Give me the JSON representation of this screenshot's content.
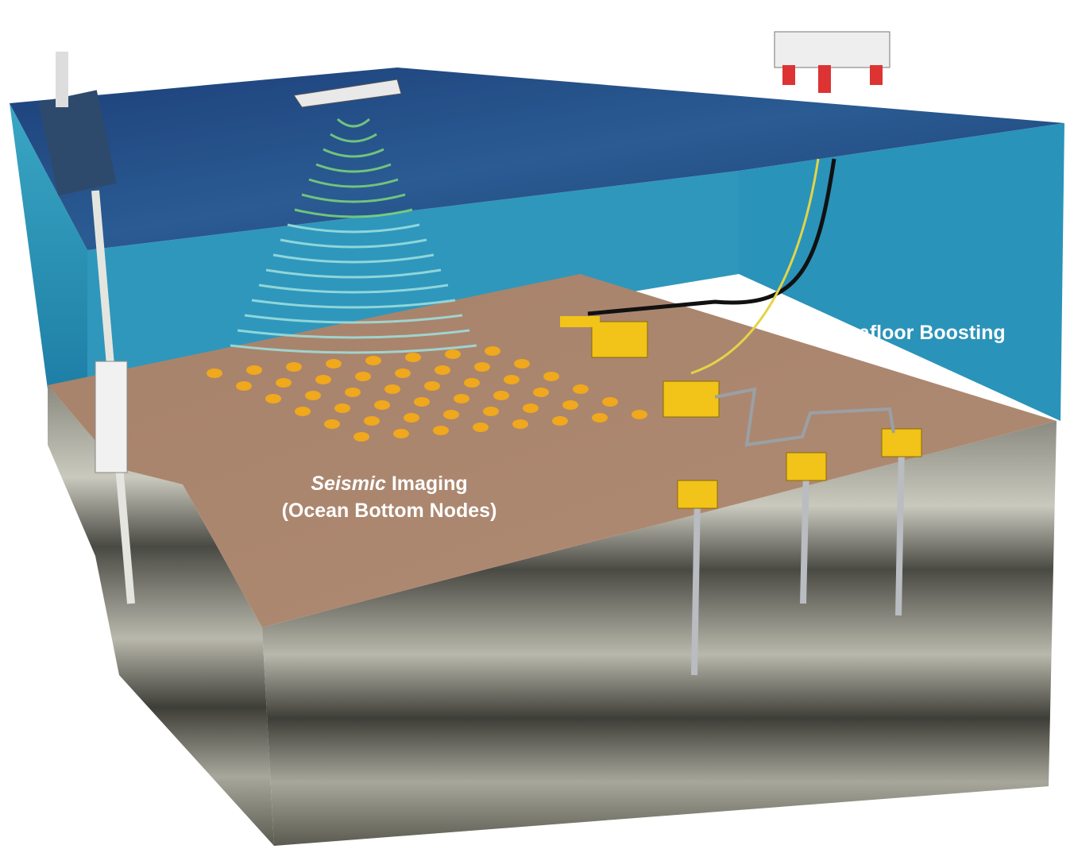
{
  "labels": {
    "seismic_emphasis": "Seismic",
    "seismic_rest": "Imaging",
    "ocean_bottom_nodes": "(Ocean Bottom Nodes)",
    "seafloor_boosting": "Seafloor Boosting"
  }
}
